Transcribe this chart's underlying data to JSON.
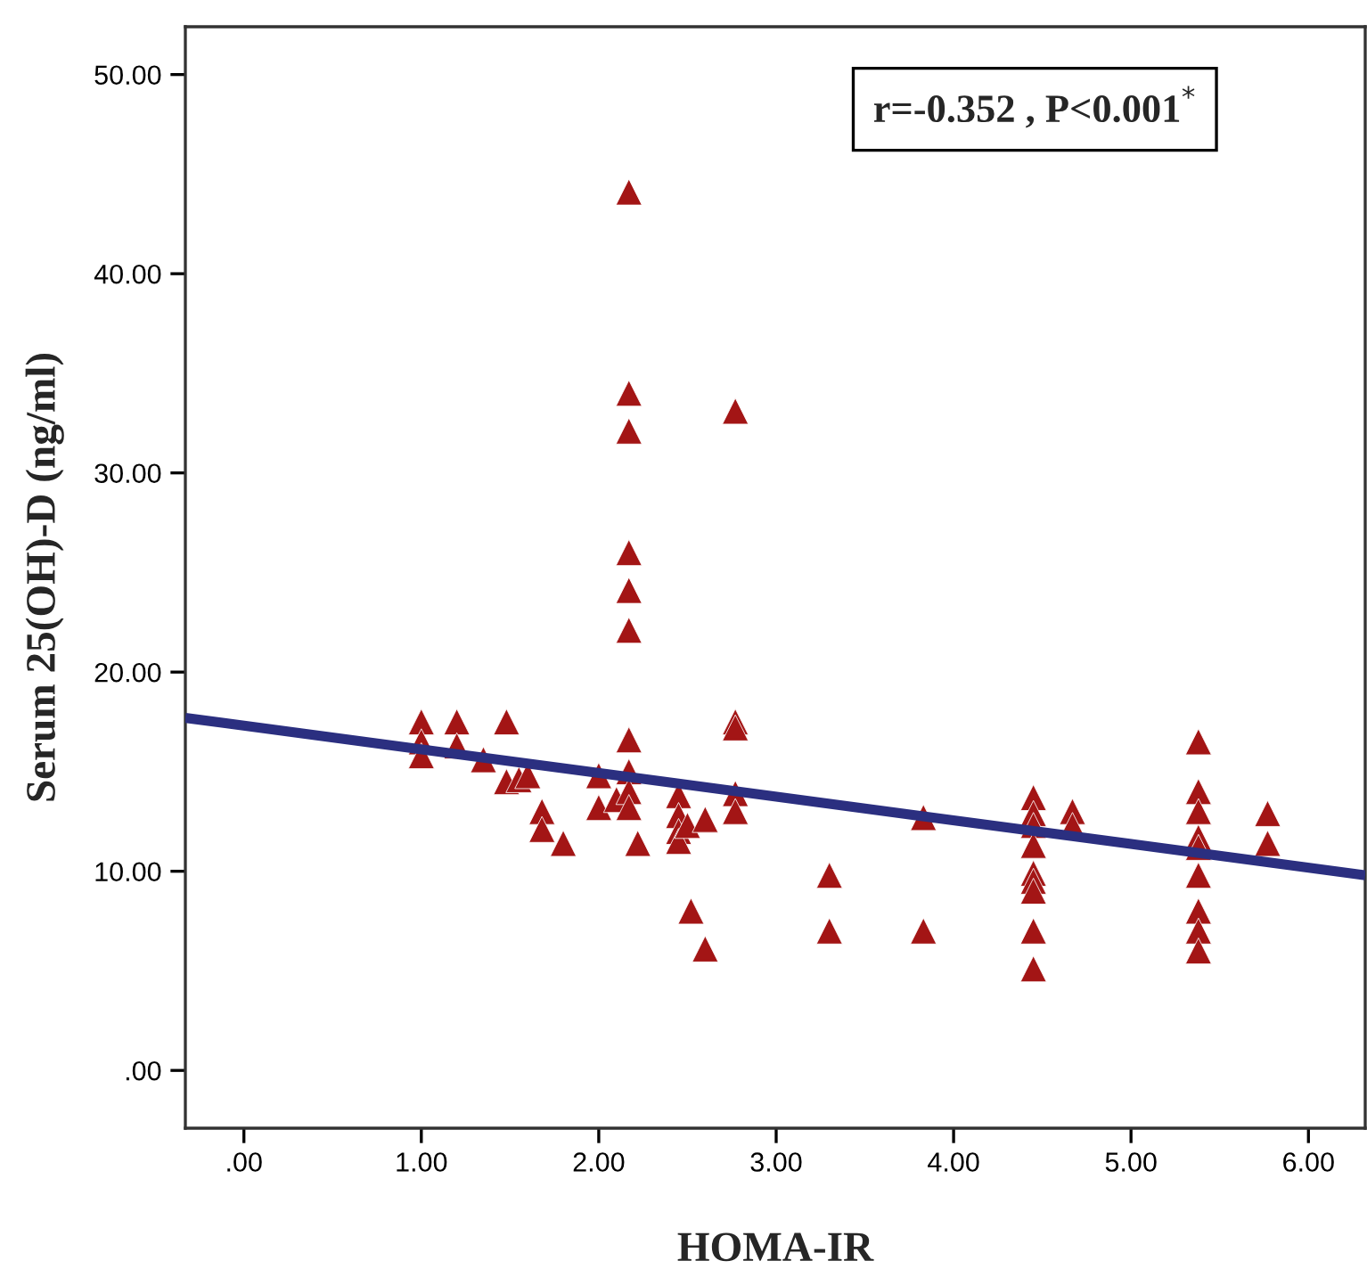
{
  "chart_data": {
    "type": "scatter",
    "xlabel": "HOMA-IR",
    "ylabel": "Serum 25(OH)-D (ng/ml)",
    "annotations": [
      "r=-0.352 , P<0.001$^{*}$"
    ],
    "xlim": [
      -0.33,
      6.32
    ],
    "ylim": [
      -2.9,
      52.4
    ],
    "xticks": [
      {
        "value": 0,
        "label": ".00"
      },
      {
        "value": 1,
        "label": "1.00"
      },
      {
        "value": 2,
        "label": "2.00"
      },
      {
        "value": 3,
        "label": "3.00"
      },
      {
        "value": 4,
        "label": "4.00"
      },
      {
        "value": 5,
        "label": "5.00"
      },
      {
        "value": 6,
        "label": "6.00"
      }
    ],
    "yticks": [
      {
        "value": 0,
        "label": ".00"
      },
      {
        "value": 10,
        "label": "10.00"
      },
      {
        "value": 20,
        "label": "20.00"
      },
      {
        "value": 30,
        "label": "30.00"
      },
      {
        "value": 40,
        "label": "40.00"
      },
      {
        "value": 50,
        "label": "50.00"
      }
    ],
    "grid": false,
    "series": [
      {
        "marker": "triangle",
        "color": "#a31515",
        "x": [
          1.0,
          1.0,
          1.0,
          1.2,
          1.2,
          1.35,
          1.48,
          1.48,
          1.55,
          1.6,
          1.68,
          1.68,
          1.8,
          2.0,
          2.0,
          2.1,
          2.17,
          2.17,
          2.17,
          2.17,
          2.17,
          2.17,
          2.17,
          2.17,
          2.17,
          2.17,
          2.22,
          2.45,
          2.45,
          2.45,
          2.45,
          2.5,
          2.52,
          2.6,
          2.6,
          2.77,
          2.77,
          2.77,
          2.77,
          2.77,
          3.3,
          3.3,
          3.83,
          3.83,
          4.45,
          4.45,
          4.45,
          4.45,
          4.45,
          4.45,
          4.45,
          4.45,
          4.45,
          4.67,
          4.67,
          5.38,
          5.38,
          5.38,
          5.38,
          5.38,
          5.38,
          5.38,
          5.38,
          5.38,
          5.77,
          5.77
        ],
        "values": [
          17.5,
          16.5,
          15.8,
          17.5,
          16.3,
          15.6,
          17.5,
          14.5,
          14.6,
          14.8,
          13.0,
          12.1,
          11.4,
          14.8,
          13.2,
          13.6,
          44.1,
          34.0,
          32.1,
          26.0,
          24.1,
          22.1,
          16.6,
          15.0,
          14.0,
          13.2,
          11.4,
          13.8,
          12.8,
          12.0,
          11.5,
          12.3,
          8.0,
          12.6,
          6.1,
          33.1,
          17.5,
          17.2,
          13.9,
          13.0,
          9.8,
          7.0,
          12.7,
          7.0,
          13.7,
          12.9,
          12.3,
          11.3,
          9.9,
          9.5,
          9.0,
          7.0,
          5.1,
          13.0,
          12.3,
          16.5,
          14.0,
          13.0,
          11.7,
          11.2,
          9.8,
          8.0,
          7.0,
          6.0,
          12.9,
          11.4
        ]
      },
      {
        "type": "line",
        "marker": "none",
        "color": "#2b2f80",
        "x": [
          -0.33,
          6.32
        ],
        "values": [
          17.7,
          9.8
        ]
      }
    ]
  }
}
